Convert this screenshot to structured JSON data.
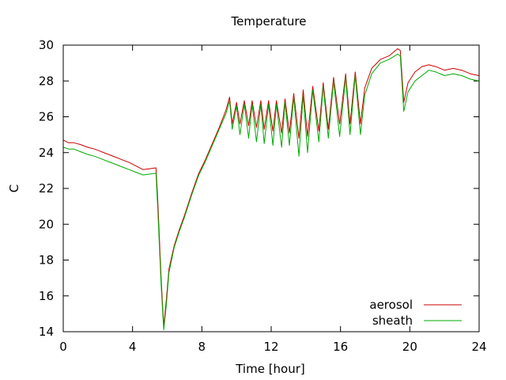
{
  "chart_data": {
    "type": "line",
    "title": "Temperature",
    "xlabel": "Time [hour]",
    "ylabel": "C",
    "xlim": [
      0,
      24
    ],
    "ylim": [
      14,
      30
    ],
    "xticks": [
      0,
      4,
      8,
      12,
      16,
      20,
      24
    ],
    "yticks": [
      14,
      16,
      18,
      20,
      22,
      24,
      26,
      28,
      30
    ],
    "grid": false,
    "legend_position": "bottom-right",
    "series": [
      {
        "name": "aerosol",
        "color": "#cc0000",
        "points": [
          [
            0.0,
            24.7
          ],
          [
            0.3,
            24.55
          ],
          [
            0.6,
            24.55
          ],
          [
            1.0,
            24.45
          ],
          [
            1.4,
            24.3
          ],
          [
            1.8,
            24.2
          ],
          [
            2.2,
            24.05
          ],
          [
            2.6,
            23.9
          ],
          [
            3.0,
            23.75
          ],
          [
            3.4,
            23.6
          ],
          [
            3.8,
            23.45
          ],
          [
            4.2,
            23.25
          ],
          [
            4.6,
            23.05
          ],
          [
            5.0,
            23.1
          ],
          [
            5.35,
            23.15
          ],
          [
            5.45,
            21.5
          ],
          [
            5.65,
            17.0
          ],
          [
            5.8,
            14.3
          ],
          [
            5.95,
            15.8
          ],
          [
            6.1,
            17.5
          ],
          [
            6.4,
            18.8
          ],
          [
            6.7,
            19.7
          ],
          [
            7.0,
            20.5
          ],
          [
            7.4,
            21.7
          ],
          [
            7.8,
            22.8
          ],
          [
            8.2,
            23.6
          ],
          [
            8.6,
            24.5
          ],
          [
            9.0,
            25.4
          ],
          [
            9.4,
            26.4
          ],
          [
            9.6,
            27.1
          ],
          [
            9.75,
            25.6
          ],
          [
            10.0,
            26.8
          ],
          [
            10.2,
            25.6
          ],
          [
            10.45,
            26.9
          ],
          [
            10.7,
            25.5
          ],
          [
            10.9,
            26.9
          ],
          [
            11.15,
            25.4
          ],
          [
            11.4,
            26.9
          ],
          [
            11.6,
            25.3
          ],
          [
            11.85,
            26.9
          ],
          [
            12.1,
            25.2
          ],
          [
            12.3,
            26.9
          ],
          [
            12.6,
            25.1
          ],
          [
            12.8,
            27.0
          ],
          [
            13.05,
            25.1
          ],
          [
            13.3,
            27.3
          ],
          [
            13.6,
            24.8
          ],
          [
            13.85,
            27.5
          ],
          [
            14.1,
            24.9
          ],
          [
            14.4,
            27.7
          ],
          [
            14.75,
            25.2
          ],
          [
            15.0,
            27.9
          ],
          [
            15.3,
            25.3
          ],
          [
            15.6,
            28.2
          ],
          [
            15.95,
            25.6
          ],
          [
            16.3,
            28.4
          ],
          [
            16.55,
            25.6
          ],
          [
            16.85,
            28.5
          ],
          [
            17.15,
            25.6
          ],
          [
            17.4,
            27.6
          ],
          [
            17.8,
            28.7
          ],
          [
            18.3,
            29.2
          ],
          [
            18.8,
            29.4
          ],
          [
            19.3,
            29.8
          ],
          [
            19.45,
            29.7
          ],
          [
            19.65,
            26.8
          ],
          [
            19.9,
            27.9
          ],
          [
            20.3,
            28.5
          ],
          [
            20.7,
            28.8
          ],
          [
            21.1,
            28.9
          ],
          [
            21.5,
            28.8
          ],
          [
            22.0,
            28.6
          ],
          [
            22.5,
            28.7
          ],
          [
            23.0,
            28.6
          ],
          [
            23.5,
            28.4
          ],
          [
            24.0,
            28.3
          ]
        ]
      },
      {
        "name": "sheath",
        "color": "#00aa00",
        "points": [
          [
            0.0,
            24.3
          ],
          [
            0.3,
            24.2
          ],
          [
            0.6,
            24.2
          ],
          [
            1.0,
            24.05
          ],
          [
            1.4,
            23.9
          ],
          [
            1.8,
            23.8
          ],
          [
            2.2,
            23.65
          ],
          [
            2.6,
            23.5
          ],
          [
            3.0,
            23.35
          ],
          [
            3.4,
            23.2
          ],
          [
            3.8,
            23.05
          ],
          [
            4.2,
            22.9
          ],
          [
            4.6,
            22.75
          ],
          [
            5.0,
            22.8
          ],
          [
            5.35,
            22.85
          ],
          [
            5.45,
            21.0
          ],
          [
            5.65,
            16.6
          ],
          [
            5.8,
            14.1
          ],
          [
            5.95,
            15.5
          ],
          [
            6.1,
            17.3
          ],
          [
            6.4,
            18.7
          ],
          [
            6.7,
            19.6
          ],
          [
            7.0,
            20.4
          ],
          [
            7.4,
            21.6
          ],
          [
            7.8,
            22.7
          ],
          [
            8.2,
            23.5
          ],
          [
            8.6,
            24.4
          ],
          [
            9.0,
            25.3
          ],
          [
            9.4,
            26.2
          ],
          [
            9.6,
            26.9
          ],
          [
            9.75,
            25.3
          ],
          [
            10.0,
            26.6
          ],
          [
            10.2,
            25.0
          ],
          [
            10.45,
            26.7
          ],
          [
            10.7,
            24.8
          ],
          [
            10.9,
            26.7
          ],
          [
            11.15,
            24.6
          ],
          [
            11.4,
            26.7
          ],
          [
            11.6,
            24.5
          ],
          [
            11.85,
            26.7
          ],
          [
            12.1,
            24.4
          ],
          [
            12.3,
            26.7
          ],
          [
            12.6,
            24.3
          ],
          [
            12.8,
            26.8
          ],
          [
            13.05,
            24.4
          ],
          [
            13.3,
            27.1
          ],
          [
            13.6,
            23.8
          ],
          [
            13.85,
            27.2
          ],
          [
            14.1,
            24.0
          ],
          [
            14.4,
            27.5
          ],
          [
            14.75,
            24.6
          ],
          [
            15.0,
            27.7
          ],
          [
            15.3,
            24.8
          ],
          [
            15.6,
            28.0
          ],
          [
            15.95,
            24.9
          ],
          [
            16.3,
            28.2
          ],
          [
            16.55,
            25.0
          ],
          [
            16.85,
            28.3
          ],
          [
            17.15,
            25.0
          ],
          [
            17.4,
            27.2
          ],
          [
            17.8,
            28.4
          ],
          [
            18.3,
            29.0
          ],
          [
            18.8,
            29.2
          ],
          [
            19.3,
            29.5
          ],
          [
            19.45,
            29.4
          ],
          [
            19.65,
            26.3
          ],
          [
            19.9,
            27.4
          ],
          [
            20.3,
            28.0
          ],
          [
            20.7,
            28.3
          ],
          [
            21.1,
            28.6
          ],
          [
            21.5,
            28.5
          ],
          [
            22.0,
            28.3
          ],
          [
            22.5,
            28.4
          ],
          [
            23.0,
            28.3
          ],
          [
            23.5,
            28.1
          ],
          [
            24.0,
            28.0
          ]
        ]
      }
    ]
  }
}
